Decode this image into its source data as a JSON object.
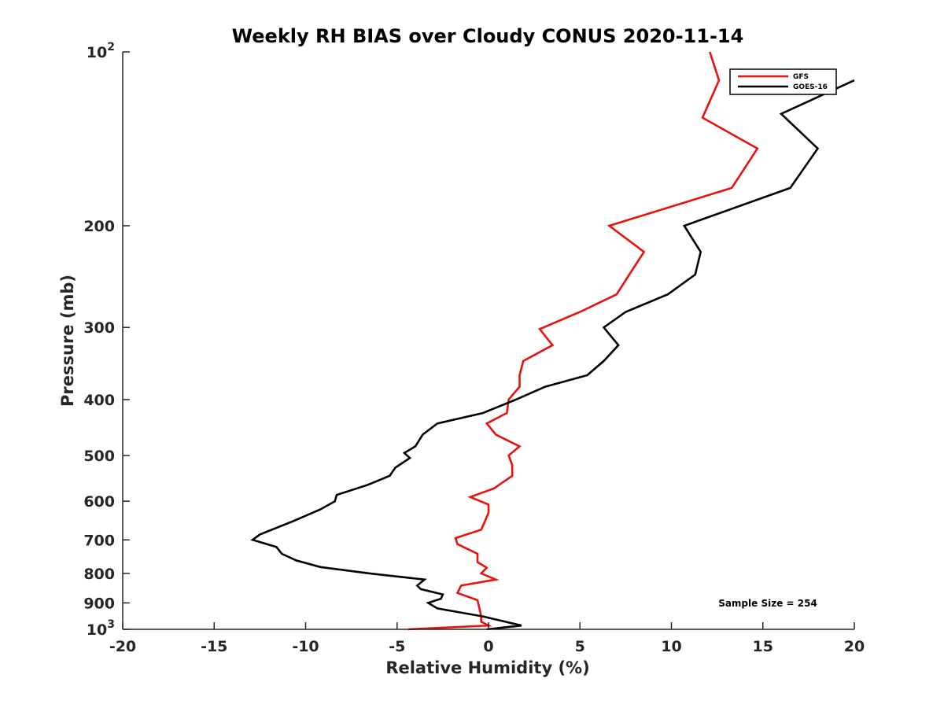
{
  "chart_data": {
    "type": "line",
    "title": "Weekly RH BIAS over Cloudy CONUS 2020-11-14",
    "xlabel": "Relative Humidity (%)",
    "ylabel": "Pressure (mb)",
    "xlim": [
      -20,
      20
    ],
    "ylim": [
      100,
      1000
    ],
    "y_scale": "log",
    "y_reversed": true,
    "grid": false,
    "legend_position": "top-right",
    "x_ticks": [
      -20,
      -15,
      -10,
      -5,
      0,
      5,
      10,
      15,
      20
    ],
    "x_tick_labels": [
      "-20",
      "-15",
      "-10",
      "-5",
      "0",
      "5",
      "10",
      "15",
      "20"
    ],
    "y_ticks": [
      {
        "value": 100,
        "base": "10",
        "exp": "2"
      },
      {
        "value": 200,
        "label": "200"
      },
      {
        "value": 300,
        "label": "300"
      },
      {
        "value": 400,
        "label": "400"
      },
      {
        "value": 500,
        "label": "500"
      },
      {
        "value": 600,
        "label": "600"
      },
      {
        "value": 700,
        "label": "700"
      },
      {
        "value": 800,
        "label": "800"
      },
      {
        "value": 900,
        "label": "900"
      },
      {
        "value": 1000,
        "base": "10",
        "exp": "3"
      }
    ],
    "annotation": "Sample Size = 254",
    "series": [
      {
        "name": "GFS",
        "color": "#e8120c",
        "points": [
          [
            12.1,
            100
          ],
          [
            12.6,
            112
          ],
          [
            11.7,
            130
          ],
          [
            14.7,
            147
          ],
          [
            13.3,
            172
          ],
          [
            6.6,
            200
          ],
          [
            8.5,
            222
          ],
          [
            7.7,
            243
          ],
          [
            7.0,
            263
          ],
          [
            5.0,
            282
          ],
          [
            2.8,
            302
          ],
          [
            3.5,
            322
          ],
          [
            1.9,
            343
          ],
          [
            1.7,
            363
          ],
          [
            1.7,
            380
          ],
          [
            1.1,
            400
          ],
          [
            1.0,
            422
          ],
          [
            -0.1,
            440
          ],
          [
            0.4,
            460
          ],
          [
            1.7,
            482
          ],
          [
            1.1,
            500
          ],
          [
            1.3,
            520
          ],
          [
            1.3,
            542
          ],
          [
            0.3,
            570
          ],
          [
            -1.0,
            590
          ],
          [
            0.0,
            608
          ],
          [
            0.0,
            628
          ],
          [
            -0.2,
            650
          ],
          [
            -0.4,
            672
          ],
          [
            -1.8,
            695
          ],
          [
            -1.7,
            712
          ],
          [
            -0.6,
            740
          ],
          [
            -0.6,
            765
          ],
          [
            -0.1,
            782
          ],
          [
            -0.4,
            800
          ],
          [
            0.4,
            820
          ],
          [
            -1.5,
            840
          ],
          [
            -1.7,
            865
          ],
          [
            -0.6,
            890
          ],
          [
            -0.5,
            920
          ],
          [
            -0.4,
            950
          ],
          [
            -0.4,
            970
          ],
          [
            0.0,
            985
          ],
          [
            -4.4,
            1000
          ]
        ]
      },
      {
        "name": "GOES-16",
        "color": "#000000",
        "points": [
          [
            20.0,
            112
          ],
          [
            16.0,
            128
          ],
          [
            18.0,
            147
          ],
          [
            16.5,
            172
          ],
          [
            10.7,
            200
          ],
          [
            11.6,
            222
          ],
          [
            11.3,
            243
          ],
          [
            9.8,
            263
          ],
          [
            7.5,
            282
          ],
          [
            6.3,
            300
          ],
          [
            7.1,
            322
          ],
          [
            6.3,
            343
          ],
          [
            5.4,
            363
          ],
          [
            3.1,
            380
          ],
          [
            1.5,
            400
          ],
          [
            -0.3,
            422
          ],
          [
            -2.8,
            440
          ],
          [
            -3.6,
            460
          ],
          [
            -4.0,
            482
          ],
          [
            -4.6,
            495
          ],
          [
            -4.3,
            505
          ],
          [
            -5.1,
            525
          ],
          [
            -5.4,
            542
          ],
          [
            -6.6,
            562
          ],
          [
            -8.3,
            585
          ],
          [
            -8.4,
            600
          ],
          [
            -9.2,
            620
          ],
          [
            -10.7,
            650
          ],
          [
            -12.5,
            685
          ],
          [
            -12.9,
            700
          ],
          [
            -11.6,
            720
          ],
          [
            -11.3,
            740
          ],
          [
            -10.5,
            760
          ],
          [
            -9.2,
            780
          ],
          [
            -6.5,
            800
          ],
          [
            -3.5,
            820
          ],
          [
            -3.9,
            840
          ],
          [
            -3.7,
            852
          ],
          [
            -2.5,
            870
          ],
          [
            -2.6,
            885
          ],
          [
            -3.3,
            900
          ],
          [
            -2.8,
            920
          ],
          [
            -0.3,
            950
          ],
          [
            1.8,
            985
          ],
          [
            -0.1,
            1000
          ]
        ]
      }
    ]
  }
}
